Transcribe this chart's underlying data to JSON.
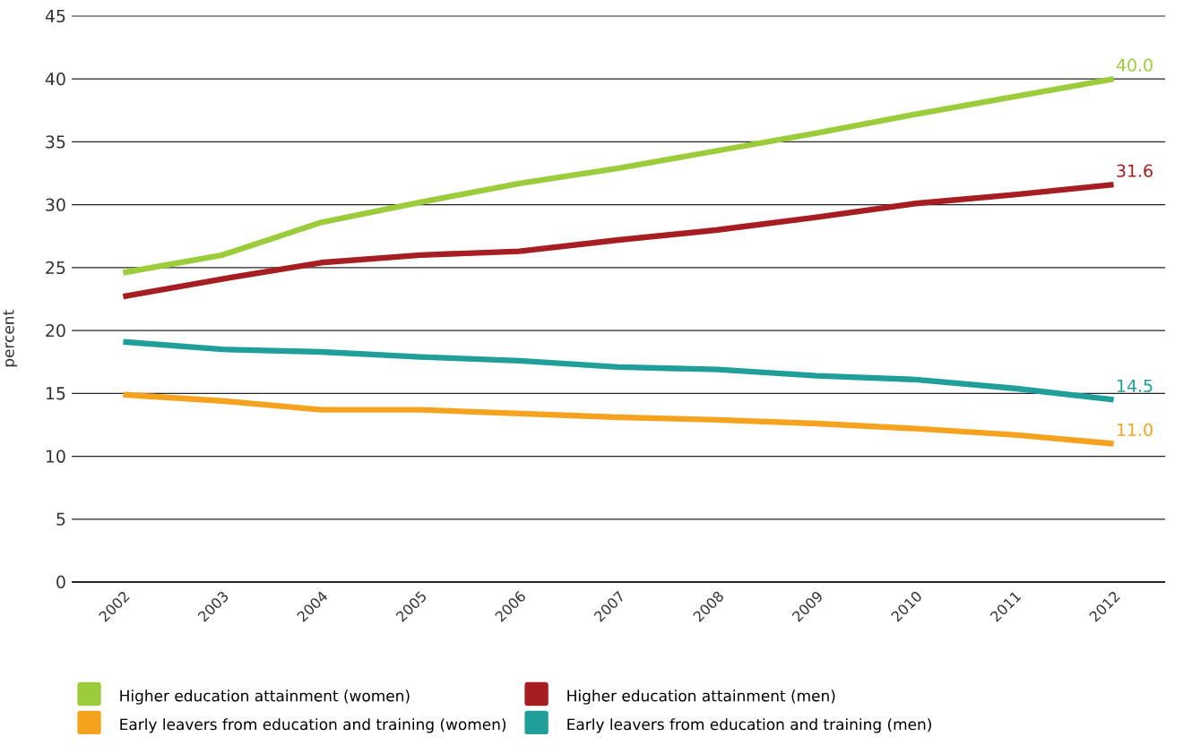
{
  "chart_data": {
    "type": "line",
    "ylabel": "percent",
    "categories": [
      "2002",
      "2003",
      "2004",
      "2005",
      "2006",
      "2007",
      "2008",
      "2009",
      "2010",
      "2011",
      "2012"
    ],
    "series": [
      {
        "name": "Higher education attainment (women)",
        "color": "#9ccb3b",
        "values": [
          24.6,
          26.0,
          28.6,
          30.2,
          31.7,
          32.9,
          34.3,
          35.7,
          37.2,
          38.6,
          40.0
        ],
        "value_labels": [
          null,
          null,
          null,
          null,
          null,
          null,
          null,
          null,
          null,
          null,
          "40.0"
        ]
      },
      {
        "name": "Higher education attainment (men)",
        "color": "#a61e22",
        "values": [
          22.7,
          24.1,
          25.4,
          26.0,
          26.3,
          27.2,
          28.0,
          29.0,
          30.1,
          30.8,
          31.6
        ],
        "value_labels": [
          null,
          null,
          null,
          null,
          null,
          null,
          null,
          null,
          null,
          null,
          "31.6"
        ]
      },
      {
        "name": "Early leavers from education and training (women)",
        "color": "#f5a31e",
        "values": [
          14.9,
          14.4,
          13.7,
          13.7,
          13.4,
          13.1,
          12.9,
          12.6,
          12.2,
          11.7,
          11.0
        ],
        "value_labels": [
          null,
          null,
          null,
          null,
          null,
          null,
          null,
          null,
          null,
          null,
          "11.0"
        ]
      },
      {
        "name": "Early leavers from education and training (men)",
        "color": "#1f9e9a",
        "values": [
          19.1,
          18.5,
          18.3,
          17.9,
          17.6,
          17.1,
          16.9,
          16.4,
          16.1,
          15.4,
          14.5
        ],
        "value_labels": [
          null,
          null,
          null,
          null,
          null,
          null,
          null,
          null,
          null,
          null,
          "14.5"
        ]
      }
    ],
    "ylim": [
      0,
      45
    ],
    "yticks": [
      0,
      5,
      10,
      15,
      20,
      25,
      30,
      35,
      40,
      45
    ],
    "grid": "y",
    "legend": "bottom",
    "marker": "none",
    "line_style": "solid"
  }
}
